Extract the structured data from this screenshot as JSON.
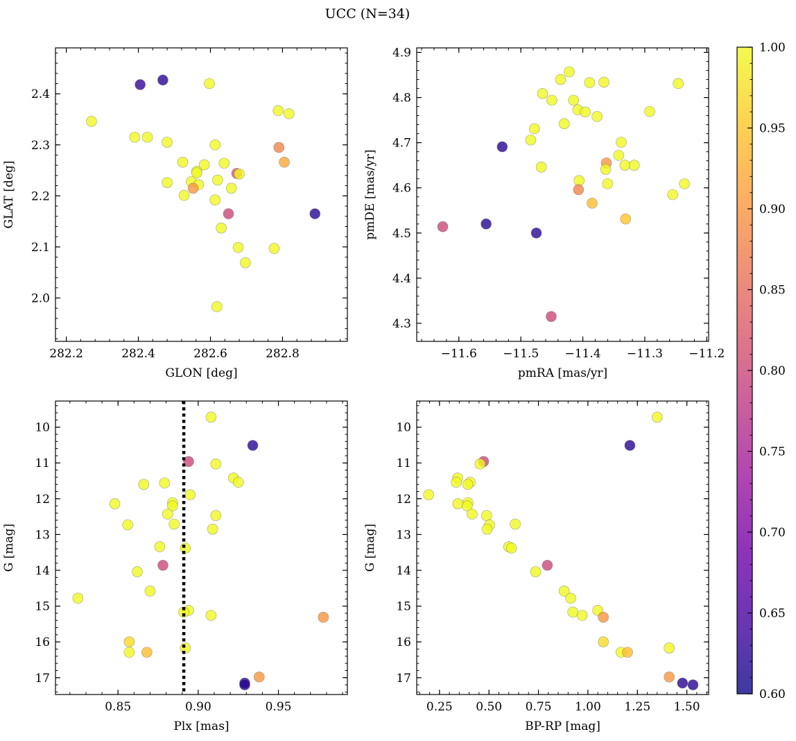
{
  "title": "UCC (N=34)",
  "colorbar": {
    "range": [
      0.6,
      1.0
    ],
    "ticks": [
      0.6,
      0.65,
      0.7,
      0.75,
      0.8,
      0.85,
      0.9,
      0.95,
      1.0
    ],
    "tick_labels": [
      "0.60",
      "0.65",
      "0.70",
      "0.75",
      "0.80",
      "0.85",
      "0.90",
      "0.95",
      "1.00"
    ],
    "colormap": "plasma",
    "colormap_stops": [
      "#0d0887",
      "#46039f",
      "#7201a8",
      "#9c179e",
      "#bd3786",
      "#d8576b",
      "#ed7953",
      "#fb9f3a",
      "#fdca26",
      "#f0f921"
    ]
  },
  "marker": {
    "alpha": 0.8,
    "edge_color": "#666666"
  },
  "chart_data": [
    {
      "type": "scatter",
      "panel": "top-left",
      "xlabel": "GLON [deg]",
      "ylabel": "GLAT [deg]",
      "xlim": [
        282.17,
        282.98
      ],
      "ylim": [
        1.915,
        2.49
      ],
      "xticks": [
        282.2,
        282.4,
        282.6,
        282.8
      ],
      "xtick_labels": [
        "282.2",
        "282.4",
        "282.6",
        "282.8"
      ],
      "yticks": [
        2.0,
        2.1,
        2.2,
        2.3,
        2.4
      ],
      "ytick_labels": [
        "2.0",
        "2.1",
        "2.2",
        "2.3",
        "2.4"
      ],
      "y_inverted": false,
      "points": [
        {
          "x": 282.405,
          "y": 2.418,
          "c": 0.63
        },
        {
          "x": 282.468,
          "y": 2.427,
          "c": 0.62
        },
        {
          "x": 282.597,
          "y": 2.42,
          "c": 1.0
        },
        {
          "x": 282.27,
          "y": 2.346,
          "c": 1.0
        },
        {
          "x": 282.39,
          "y": 2.315,
          "c": 1.0
        },
        {
          "x": 282.425,
          "y": 2.315,
          "c": 1.0
        },
        {
          "x": 282.48,
          "y": 2.305,
          "c": 1.0
        },
        {
          "x": 282.788,
          "y": 2.367,
          "c": 1.0
        },
        {
          "x": 282.818,
          "y": 2.361,
          "c": 1.0
        },
        {
          "x": 282.613,
          "y": 2.3,
          "c": 1.0
        },
        {
          "x": 282.79,
          "y": 2.295,
          "c": 0.88
        },
        {
          "x": 282.523,
          "y": 2.266,
          "c": 1.0
        },
        {
          "x": 282.583,
          "y": 2.261,
          "c": 1.0
        },
        {
          "x": 282.638,
          "y": 2.264,
          "c": 1.0
        },
        {
          "x": 282.805,
          "y": 2.266,
          "c": 0.92
        },
        {
          "x": 282.562,
          "y": 2.248,
          "c": 1.0
        },
        {
          "x": 282.562,
          "y": 2.245,
          "c": 1.0
        },
        {
          "x": 282.673,
          "y": 2.244,
          "c": 0.82
        },
        {
          "x": 282.68,
          "y": 2.243,
          "c": 1.0
        },
        {
          "x": 282.48,
          "y": 2.226,
          "c": 1.0
        },
        {
          "x": 282.547,
          "y": 2.228,
          "c": 1.0
        },
        {
          "x": 282.567,
          "y": 2.222,
          "c": 1.0
        },
        {
          "x": 282.552,
          "y": 2.215,
          "c": 0.9
        },
        {
          "x": 282.62,
          "y": 2.231,
          "c": 1.0
        },
        {
          "x": 282.658,
          "y": 2.215,
          "c": 1.0
        },
        {
          "x": 282.527,
          "y": 2.201,
          "c": 1.0
        },
        {
          "x": 282.613,
          "y": 2.192,
          "c": 1.0
        },
        {
          "x": 282.65,
          "y": 2.165,
          "c": 0.8
        },
        {
          "x": 282.89,
          "y": 2.165,
          "c": 0.62
        },
        {
          "x": 282.63,
          "y": 2.137,
          "c": 1.0
        },
        {
          "x": 282.677,
          "y": 2.099,
          "c": 1.0
        },
        {
          "x": 282.777,
          "y": 2.097,
          "c": 1.0
        },
        {
          "x": 282.697,
          "y": 2.069,
          "c": 1.0
        },
        {
          "x": 282.618,
          "y": 1.983,
          "c": 1.0
        }
      ]
    },
    {
      "type": "scatter",
      "panel": "top-right",
      "xlabel": "pmRA [mas/yr]",
      "ylabel": "pmDE [mas/yr]",
      "xlim": [
        -11.668,
        -11.197
      ],
      "ylim": [
        4.26,
        4.91
      ],
      "xticks": [
        -11.6,
        -11.5,
        -11.4,
        -11.3,
        -11.2
      ],
      "xtick_labels": [
        "−11.6",
        "−11.5",
        "−11.4",
        "−11.3",
        "−11.2"
      ],
      "yticks": [
        4.3,
        4.4,
        4.5,
        4.6,
        4.7,
        4.8,
        4.9
      ],
      "ytick_labels": [
        "4.3",
        "4.4",
        "4.5",
        "4.6",
        "4.7",
        "4.8",
        "4.9"
      ],
      "y_inverted": false,
      "points": [
        {
          "x": -11.422,
          "y": 4.857,
          "c": 1.0
        },
        {
          "x": -11.436,
          "y": 4.84,
          "c": 1.0
        },
        {
          "x": -11.389,
          "y": 4.833,
          "c": 1.0
        },
        {
          "x": -11.366,
          "y": 4.834,
          "c": 1.0
        },
        {
          "x": -11.246,
          "y": 4.831,
          "c": 1.0
        },
        {
          "x": -11.465,
          "y": 4.809,
          "c": 1.0
        },
        {
          "x": -11.45,
          "y": 4.794,
          "c": 1.0
        },
        {
          "x": -11.415,
          "y": 4.794,
          "c": 1.0
        },
        {
          "x": -11.408,
          "y": 4.773,
          "c": 1.0
        },
        {
          "x": -11.396,
          "y": 4.768,
          "c": 1.0
        },
        {
          "x": -11.377,
          "y": 4.758,
          "c": 1.0
        },
        {
          "x": -11.292,
          "y": 4.769,
          "c": 1.0
        },
        {
          "x": -11.43,
          "y": 4.742,
          "c": 1.0
        },
        {
          "x": -11.478,
          "y": 4.731,
          "c": 1.0
        },
        {
          "x": -11.484,
          "y": 4.706,
          "c": 1.0
        },
        {
          "x": -11.53,
          "y": 4.691,
          "c": 0.62
        },
        {
          "x": -11.338,
          "y": 4.701,
          "c": 1.0
        },
        {
          "x": -11.342,
          "y": 4.672,
          "c": 1.0
        },
        {
          "x": -11.362,
          "y": 4.655,
          "c": 0.9
        },
        {
          "x": -11.332,
          "y": 4.65,
          "c": 1.0
        },
        {
          "x": -11.317,
          "y": 4.65,
          "c": 1.0
        },
        {
          "x": -11.467,
          "y": 4.646,
          "c": 1.0
        },
        {
          "x": -11.363,
          "y": 4.641,
          "c": 1.0
        },
        {
          "x": -11.406,
          "y": 4.616,
          "c": 1.0
        },
        {
          "x": -11.36,
          "y": 4.609,
          "c": 1.0
        },
        {
          "x": -11.236,
          "y": 4.609,
          "c": 1.0
        },
        {
          "x": -11.407,
          "y": 4.596,
          "c": 0.88
        },
        {
          "x": -11.255,
          "y": 4.585,
          "c": 1.0
        },
        {
          "x": -11.385,
          "y": 4.566,
          "c": 0.94
        },
        {
          "x": -11.331,
          "y": 4.531,
          "c": 0.95
        },
        {
          "x": -11.556,
          "y": 4.52,
          "c": 0.62
        },
        {
          "x": -11.626,
          "y": 4.514,
          "c": 0.8
        },
        {
          "x": -11.475,
          "y": 4.5,
          "c": 0.62
        },
        {
          "x": -11.451,
          "y": 4.315,
          "c": 0.8
        }
      ]
    },
    {
      "type": "scatter",
      "panel": "bottom-left",
      "xlabel": "Plx [mas]",
      "ylabel": "G [mag]",
      "xlim": [
        0.811,
        0.993
      ],
      "ylim": [
        17.47,
        9.27
      ],
      "xticks": [
        0.85,
        0.9,
        0.95
      ],
      "xtick_labels": [
        "0.85",
        "0.90",
        "0.95"
      ],
      "yticks": [
        10,
        11,
        12,
        13,
        14,
        15,
        16,
        17
      ],
      "ytick_labels": [
        "10",
        "11",
        "12",
        "13",
        "14",
        "15",
        "16",
        "17"
      ],
      "y_inverted": true,
      "vline": {
        "x": 0.891,
        "style": "dotted",
        "color": "#000000"
      },
      "points": [
        {
          "x": 0.908,
          "y": 9.72,
          "c": 1.0
        },
        {
          "x": 0.934,
          "y": 10.51,
          "c": 0.62
        },
        {
          "x": 0.894,
          "y": 10.96,
          "c": 0.8
        },
        {
          "x": 0.911,
          "y": 11.03,
          "c": 1.0
        },
        {
          "x": 0.922,
          "y": 11.42,
          "c": 1.0
        },
        {
          "x": 0.925,
          "y": 11.54,
          "c": 1.0
        },
        {
          "x": 0.879,
          "y": 11.56,
          "c": 1.0
        },
        {
          "x": 0.866,
          "y": 11.6,
          "c": 1.0
        },
        {
          "x": 0.895,
          "y": 11.89,
          "c": 1.0
        },
        {
          "x": 0.884,
          "y": 12.11,
          "c": 1.0
        },
        {
          "x": 0.848,
          "y": 12.14,
          "c": 1.0
        },
        {
          "x": 0.884,
          "y": 12.2,
          "c": 1.0
        },
        {
          "x": 0.881,
          "y": 12.43,
          "c": 1.0
        },
        {
          "x": 0.911,
          "y": 12.47,
          "c": 1.0
        },
        {
          "x": 0.856,
          "y": 12.73,
          "c": 1.0
        },
        {
          "x": 0.885,
          "y": 12.71,
          "c": 1.0
        },
        {
          "x": 0.909,
          "y": 12.85,
          "c": 1.0
        },
        {
          "x": 0.876,
          "y": 13.34,
          "c": 1.0
        },
        {
          "x": 0.892,
          "y": 13.38,
          "c": 1.0
        },
        {
          "x": 0.878,
          "y": 13.86,
          "c": 0.8
        },
        {
          "x": 0.862,
          "y": 14.04,
          "c": 1.0
        },
        {
          "x": 0.87,
          "y": 14.58,
          "c": 1.0
        },
        {
          "x": 0.825,
          "y": 14.78,
          "c": 1.0
        },
        {
          "x": 0.894,
          "y": 15.12,
          "c": 1.0
        },
        {
          "x": 0.891,
          "y": 15.17,
          "c": 1.0
        },
        {
          "x": 0.908,
          "y": 15.26,
          "c": 1.0
        },
        {
          "x": 0.978,
          "y": 15.31,
          "c": 0.9
        },
        {
          "x": 0.857,
          "y": 16.0,
          "c": 0.97
        },
        {
          "x": 0.892,
          "y": 16.17,
          "c": 1.0
        },
        {
          "x": 0.857,
          "y": 16.29,
          "c": 1.0
        },
        {
          "x": 0.868,
          "y": 16.29,
          "c": 0.94
        },
        {
          "x": 0.938,
          "y": 16.98,
          "c": 0.9
        },
        {
          "x": 0.929,
          "y": 17.15,
          "c": 0.62
        },
        {
          "x": 0.929,
          "y": 17.2,
          "c": 0.62
        }
      ]
    },
    {
      "type": "scatter",
      "panel": "bottom-right",
      "xlabel": "BP-RP [mag]",
      "ylabel": "G [mag]",
      "xlim": [
        0.135,
        1.61
      ],
      "ylim": [
        17.47,
        9.27
      ],
      "xticks": [
        0.25,
        0.5,
        0.75,
        1.0,
        1.25,
        1.5
      ],
      "xtick_labels": [
        "0.25",
        "0.50",
        "0.75",
        "1.00",
        "1.25",
        "1.50"
      ],
      "yticks": [
        10,
        11,
        12,
        13,
        14,
        15,
        16,
        17
      ],
      "ytick_labels": [
        "10",
        "11",
        "12",
        "13",
        "14",
        "15",
        "16",
        "17"
      ],
      "y_inverted": true,
      "points": [
        {
          "x": 1.35,
          "y": 9.72,
          "c": 1.0
        },
        {
          "x": 1.212,
          "y": 10.51,
          "c": 0.62
        },
        {
          "x": 0.473,
          "y": 10.96,
          "c": 0.8
        },
        {
          "x": 0.455,
          "y": 11.03,
          "c": 1.0
        },
        {
          "x": 0.342,
          "y": 11.42,
          "c": 1.0
        },
        {
          "x": 0.335,
          "y": 11.54,
          "c": 1.0
        },
        {
          "x": 0.405,
          "y": 11.54,
          "c": 1.0
        },
        {
          "x": 0.393,
          "y": 11.6,
          "c": 1.0
        },
        {
          "x": 0.195,
          "y": 11.89,
          "c": 1.0
        },
        {
          "x": 0.394,
          "y": 12.11,
          "c": 1.0
        },
        {
          "x": 0.343,
          "y": 12.14,
          "c": 1.0
        },
        {
          "x": 0.39,
          "y": 12.2,
          "c": 1.0
        },
        {
          "x": 0.415,
          "y": 12.43,
          "c": 1.0
        },
        {
          "x": 0.488,
          "y": 12.47,
          "c": 1.0
        },
        {
          "x": 0.633,
          "y": 12.71,
          "c": 1.0
        },
        {
          "x": 0.503,
          "y": 12.73,
          "c": 1.0
        },
        {
          "x": 0.491,
          "y": 12.85,
          "c": 1.0
        },
        {
          "x": 0.6,
          "y": 13.34,
          "c": 1.0
        },
        {
          "x": 0.614,
          "y": 13.38,
          "c": 1.0
        },
        {
          "x": 0.795,
          "y": 13.86,
          "c": 0.8
        },
        {
          "x": 0.736,
          "y": 14.04,
          "c": 1.0
        },
        {
          "x": 0.88,
          "y": 14.58,
          "c": 1.0
        },
        {
          "x": 0.913,
          "y": 14.78,
          "c": 1.0
        },
        {
          "x": 1.05,
          "y": 15.12,
          "c": 1.0
        },
        {
          "x": 0.924,
          "y": 15.17,
          "c": 1.0
        },
        {
          "x": 0.971,
          "y": 15.26,
          "c": 1.0
        },
        {
          "x": 1.078,
          "y": 15.31,
          "c": 0.9
        },
        {
          "x": 1.078,
          "y": 16.0,
          "c": 0.97
        },
        {
          "x": 1.411,
          "y": 16.17,
          "c": 1.0
        },
        {
          "x": 1.167,
          "y": 16.29,
          "c": 1.0
        },
        {
          "x": 1.2,
          "y": 16.29,
          "c": 0.94
        },
        {
          "x": 1.411,
          "y": 16.98,
          "c": 0.9
        },
        {
          "x": 1.478,
          "y": 17.15,
          "c": 0.62
        },
        {
          "x": 1.531,
          "y": 17.2,
          "c": 0.62
        }
      ]
    }
  ]
}
